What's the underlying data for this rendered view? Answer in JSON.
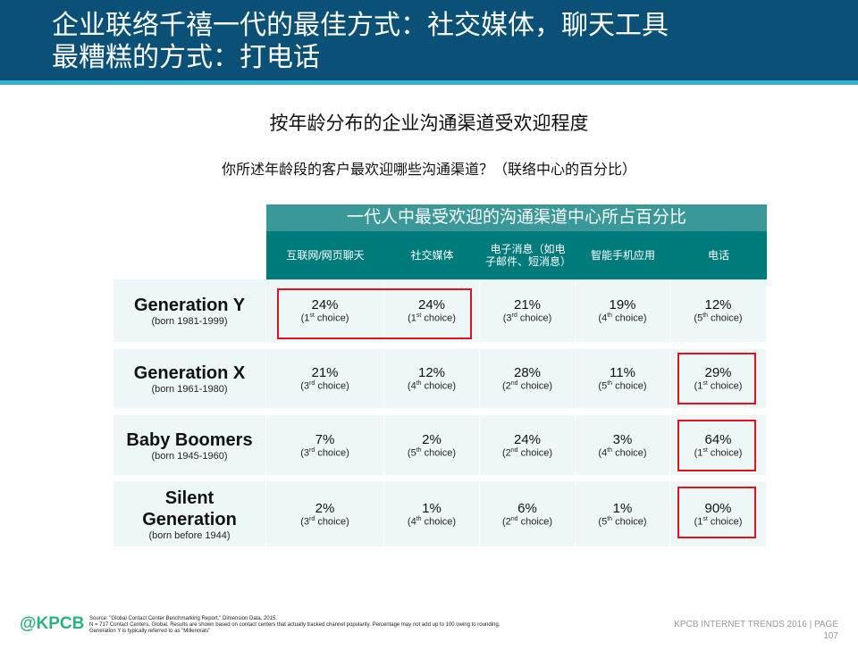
{
  "header": {
    "title_line1": "企业联络千禧一代的最佳方式：社交媒体，聊天工具",
    "title_line2": "最糟糕的方式：打电话"
  },
  "subtitle": "按年龄分布的企业沟通渠道受欢迎程度",
  "question": "你所述年龄段的客户最欢迎哪些沟通渠道？（联络中心的百分比）",
  "table": {
    "band": "一代人中最受欢迎的沟通渠道中心所占百分比",
    "columns": [
      "互联网/网页聊天",
      "社交媒体",
      "电子消息（如电子邮件、短消息）",
      "智能手机应用",
      "电话"
    ],
    "rows": [
      {
        "name": "Generation Y",
        "born": "(born 1981-1999)",
        "cells": [
          [
            "24%",
            "1",
            "st"
          ],
          [
            "24%",
            "1",
            "st"
          ],
          [
            "21%",
            "3",
            "rd"
          ],
          [
            "19%",
            "4",
            "th"
          ],
          [
            "12%",
            "5",
            "th"
          ]
        ]
      },
      {
        "name": "Generation X",
        "born": "(born 1961-1980)",
        "cells": [
          [
            "21%",
            "3",
            "rd"
          ],
          [
            "12%",
            "4",
            "th"
          ],
          [
            "28%",
            "2",
            "nd"
          ],
          [
            "11%",
            "5",
            "th"
          ],
          [
            "29%",
            "1",
            "st"
          ]
        ]
      },
      {
        "name": "Baby Boomers",
        "born": "(born 1945-1960)",
        "cells": [
          [
            "7%",
            "3",
            "rd"
          ],
          [
            "2%",
            "5",
            "th"
          ],
          [
            "24%",
            "2",
            "nd"
          ],
          [
            "3%",
            "4",
            "th"
          ],
          [
            "64%",
            "1",
            "st"
          ]
        ]
      },
      {
        "name": "Silent Generation",
        "born": "(born before 1944)",
        "cells": [
          [
            "2%",
            "3",
            "rd"
          ],
          [
            "1%",
            "4",
            "th"
          ],
          [
            "6%",
            "2",
            "nd"
          ],
          [
            "1%",
            "5",
            "th"
          ],
          [
            "90%",
            "1",
            "st"
          ]
        ]
      }
    ],
    "choice_word": "choice"
  },
  "footer": {
    "source": "Source: \"Global Contact Center Benchmarking Report,\" Dimension Data, 2015.",
    "note1": "N = 717 Contact Centers, Global. Results are shown based on contact centers that actually tracked channel popularity. Percentage may not add up to 100 owing to rounding.",
    "note2": "Generation Y is typically referred to as \"Millennials\"",
    "logo": "@KPCB",
    "trends": "KPCB INTERNET TRENDS 2016  |  PAGE",
    "page": "107"
  },
  "colors": {
    "header": "#0b5077",
    "teal": "#007b7b",
    "highlight": "#e0141e"
  }
}
